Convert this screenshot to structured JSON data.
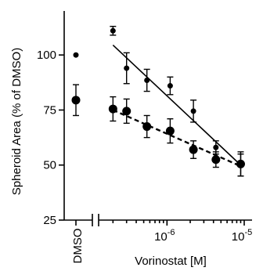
{
  "chart_data": {
    "type": "scatter",
    "title": "",
    "xlabel": "Vorinostat [M]",
    "ylabel": "Spheroid Area (% of DMSO)",
    "x_scale": "log",
    "xlim": [
      1.5e-07,
      1e-05
    ],
    "ylim": [
      25,
      120
    ],
    "y_ticks": [
      25,
      50,
      75,
      100
    ],
    "y_tick_labels": [
      "25",
      "50",
      "75",
      "100"
    ],
    "x_ticks": [
      1e-06,
      1e-05
    ],
    "x_tick_labels": [
      {
        "base": "10",
        "exp": "-6"
      },
      {
        "base": "10",
        "exp": "-5"
      }
    ],
    "control": {
      "label": "DMSO",
      "points": [
        {
          "series": "upper",
          "y": 100,
          "err": 0
        },
        {
          "series": "lower",
          "y": 79.5,
          "err": 7
        }
      ]
    },
    "series": [
      {
        "marker_size": "small",
        "points": [
          {
            "x": 2e-07,
            "y": 111,
            "err": 2
          },
          {
            "x": 3e-07,
            "y": 94,
            "err": 7
          },
          {
            "x": 5.5e-07,
            "y": 88.5,
            "err": 5
          },
          {
            "x": 1.1e-06,
            "y": 86,
            "err": 4
          },
          {
            "x": 2.2e-06,
            "y": 74.5,
            "err": 5
          },
          {
            "x": 4.3e-06,
            "y": 58,
            "err": 3
          },
          {
            "x": 9e-06,
            "y": 50,
            "err": 5
          }
        ],
        "fit": {
          "style": "solid",
          "from": [
            2e-07,
            104.5
          ],
          "to": [
            9e-06,
            50
          ]
        }
      },
      {
        "marker_size": "large",
        "points": [
          {
            "x": 2e-07,
            "y": 75.5,
            "err": 5.5
          },
          {
            "x": 3e-07,
            "y": 74.5,
            "err": 5.5
          },
          {
            "x": 5.5e-07,
            "y": 67.5,
            "err": 5
          },
          {
            "x": 1.1e-06,
            "y": 65.5,
            "err": 5.5
          },
          {
            "x": 2.2e-06,
            "y": 57,
            "err": 4
          },
          {
            "x": 4.3e-06,
            "y": 52.5,
            "err": 3.5
          },
          {
            "x": 9e-06,
            "y": 50.5,
            "err": 5.5
          }
        ],
        "fit": {
          "style": "dashed",
          "from": [
            2e-07,
            75
          ],
          "to": [
            9e-06,
            49.5
          ]
        }
      }
    ]
  }
}
